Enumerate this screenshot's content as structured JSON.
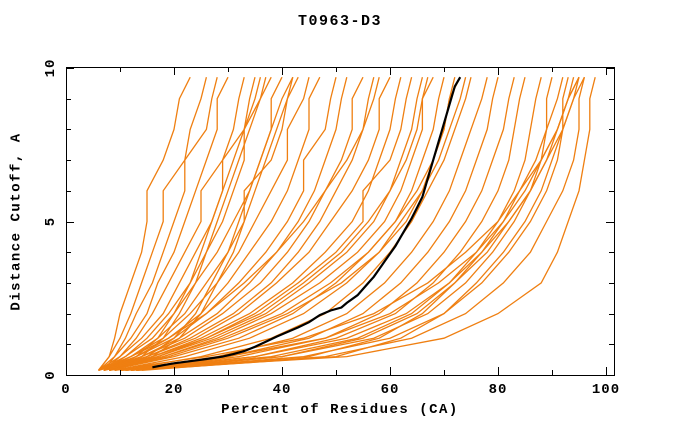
{
  "chart_data": {
    "type": "line",
    "title": "T0963-D3",
    "xlabel": "Percent of Residues (CA)",
    "ylabel": "Distance Cutoff, A",
    "xlim": [
      0,
      100
    ],
    "ylim": [
      0,
      10
    ],
    "grid": false,
    "legend": false,
    "x_ticks": {
      "major": [
        0,
        20,
        40,
        60,
        80,
        100
      ],
      "minor": [
        10,
        30,
        50,
        70,
        90
      ]
    },
    "y_ticks": {
      "major": [
        0,
        5,
        10
      ],
      "minor": [
        1,
        2,
        3,
        4,
        6,
        7,
        8,
        9
      ]
    },
    "colors": {
      "models": "#ef7f11",
      "highlight": "#000000",
      "frame": "#000000"
    },
    "highlight_series": {
      "name": "highlighted-model",
      "color": "#000000",
      "points": [
        [
          16,
          0.25
        ],
        [
          18,
          0.32
        ],
        [
          20,
          0.38
        ],
        [
          23,
          0.45
        ],
        [
          26,
          0.52
        ],
        [
          29,
          0.6
        ],
        [
          31,
          0.68
        ],
        [
          33,
          0.78
        ],
        [
          35,
          0.92
        ],
        [
          37,
          1.08
        ],
        [
          39,
          1.25
        ],
        [
          41,
          1.4
        ],
        [
          43,
          1.55
        ],
        [
          45,
          1.72
        ],
        [
          47,
          1.95
        ],
        [
          49,
          2.1
        ],
        [
          51,
          2.2
        ],
        [
          52,
          2.35
        ],
        [
          54,
          2.6
        ],
        [
          55,
          2.8
        ],
        [
          56,
          3.0
        ],
        [
          57,
          3.2
        ],
        [
          58,
          3.45
        ],
        [
          59,
          3.7
        ],
        [
          60,
          3.95
        ],
        [
          61,
          4.2
        ],
        [
          62,
          4.5
        ],
        [
          63,
          4.8
        ],
        [
          64,
          5.1
        ],
        [
          65,
          5.45
        ],
        [
          66,
          5.8
        ],
        [
          66.5,
          6.1
        ],
        [
          67,
          6.4
        ],
        [
          67.5,
          6.7
        ],
        [
          68,
          7.0
        ],
        [
          68.5,
          7.3
        ],
        [
          69,
          7.6
        ],
        [
          69.5,
          7.9
        ],
        [
          70,
          8.2
        ],
        [
          70.5,
          8.5
        ],
        [
          71,
          8.8
        ],
        [
          71.5,
          9.1
        ],
        [
          72,
          9.4
        ],
        [
          72.5,
          9.55
        ],
        [
          73,
          9.7
        ]
      ]
    },
    "model_series": {
      "name": "server-models",
      "color": "#ef7f11",
      "cutoffs": [
        0.15,
        0.6,
        1.2,
        2,
        3,
        4,
        5,
        6,
        7,
        8,
        9,
        9.7
      ],
      "percents": [
        [
          6,
          8,
          9,
          10,
          12,
          14,
          15,
          15,
          18,
          20,
          21,
          23
        ],
        [
          6,
          8,
          10,
          12,
          14,
          16,
          18,
          18,
          22,
          23,
          25,
          26
        ],
        [
          7,
          9,
          11,
          13,
          16,
          18,
          20,
          22,
          22,
          26,
          27,
          28
        ],
        [
          6,
          9,
          12,
          15,
          17,
          20,
          22,
          24,
          26,
          28,
          28,
          30
        ],
        [
          7,
          10,
          13,
          16,
          19,
          22,
          25,
          25,
          29,
          31,
          32,
          33
        ],
        [
          6,
          10,
          14,
          18,
          21,
          24,
          27,
          29,
          29,
          33,
          34,
          35
        ],
        [
          7,
          11,
          15,
          19,
          23,
          26,
          29,
          31,
          33,
          33,
          36,
          37
        ],
        [
          6,
          11,
          16,
          20,
          24,
          28,
          31,
          34,
          36,
          38,
          38,
          40
        ],
        [
          7,
          12,
          17,
          22,
          26,
          30,
          33,
          33,
          38,
          40,
          41,
          42
        ],
        [
          6,
          12,
          18,
          23,
          28,
          32,
          35,
          38,
          41,
          41,
          44,
          45
        ],
        [
          7,
          13,
          19,
          25,
          30,
          34,
          38,
          41,
          43,
          45,
          45,
          47
        ],
        [
          6,
          13,
          20,
          26,
          32,
          37,
          41,
          44,
          44,
          48,
          49,
          50
        ],
        [
          7,
          14,
          21,
          28,
          34,
          39,
          43,
          46,
          48,
          50,
          51,
          52
        ],
        [
          6,
          14,
          22,
          29,
          36,
          41,
          45,
          48,
          51,
          53,
          53,
          55
        ],
        [
          7,
          15,
          23,
          31,
          38,
          43,
          47,
          50,
          53,
          55,
          56,
          57
        ],
        [
          6,
          15,
          24,
          32,
          39,
          45,
          49,
          53,
          56,
          58,
          58,
          60
        ],
        [
          7,
          16,
          25,
          34,
          42,
          48,
          53,
          56,
          58,
          60,
          61,
          62
        ],
        [
          8,
          17,
          26,
          35,
          43,
          50,
          55,
          55,
          60,
          62,
          63,
          64
        ],
        [
          7,
          17,
          27,
          37,
          45,
          52,
          57,
          60,
          62,
          64,
          65,
          66
        ],
        [
          8,
          18,
          28,
          38,
          47,
          54,
          59,
          62,
          64,
          66,
          66,
          68
        ],
        [
          7,
          18,
          29,
          40,
          49,
          56,
          61,
          64,
          66,
          68,
          69,
          70
        ],
        [
          8,
          19,
          30,
          41,
          51,
          58,
          63,
          66,
          68,
          70,
          71,
          72
        ],
        [
          10,
          25,
          38,
          48,
          55,
          60,
          64,
          67,
          70,
          72,
          74,
          75
        ],
        [
          11,
          28,
          42,
          52,
          59,
          64,
          68,
          71,
          73,
          75,
          77,
          78
        ],
        [
          10,
          30,
          45,
          55,
          62,
          67,
          71,
          74,
          76,
          78,
          79,
          80
        ],
        [
          11,
          32,
          48,
          58,
          65,
          70,
          74,
          77,
          79,
          81,
          82,
          83
        ],
        [
          12,
          35,
          50,
          61,
          68,
          73,
          77,
          80,
          82,
          83,
          84,
          85
        ],
        [
          12,
          38,
          54,
          64,
          71,
          76,
          80,
          83,
          85,
          86,
          87,
          88
        ],
        [
          13,
          40,
          57,
          67,
          74,
          79,
          83,
          86,
          88,
          89,
          89,
          90
        ],
        [
          13,
          44,
          60,
          70,
          77,
          82,
          86,
          89,
          91,
          92,
          92,
          93
        ],
        [
          14,
          48,
          64,
          74,
          81,
          86,
          89,
          92,
          94,
          95,
          95,
          96
        ],
        [
          10,
          52,
          70,
          80,
          88,
          91,
          93,
          95,
          96,
          97,
          97,
          98
        ],
        [
          12,
          45,
          58,
          66,
          72,
          77,
          81,
          84,
          87,
          89,
          91,
          92
        ],
        [
          13,
          50,
          62,
          70,
          76,
          81,
          85,
          88,
          90,
          92,
          94,
          95
        ],
        [
          11,
          40,
          55,
          65,
          72,
          78,
          82,
          86,
          89,
          91,
          93,
          94
        ],
        [
          10,
          35,
          52,
          63,
          71,
          77,
          82,
          86,
          89,
          92,
          94,
          96
        ],
        [
          9,
          30,
          48,
          60,
          69,
          76,
          81,
          85,
          88,
          91,
          93,
          95
        ],
        [
          8,
          26,
          44,
          57,
          67,
          74,
          80,
          84,
          88,
          91,
          93,
          95
        ],
        [
          8,
          14,
          18,
          21,
          24,
          26,
          28,
          30,
          32,
          34,
          36,
          38
        ],
        [
          9,
          16,
          21,
          25,
          28,
          31,
          33,
          35,
          37,
          39,
          41,
          43
        ],
        [
          8,
          13,
          17,
          20,
          23,
          25,
          27,
          29,
          31,
          33,
          35,
          36
        ],
        [
          9,
          15,
          20,
          24,
          27,
          30,
          32,
          34,
          36,
          38,
          40,
          42
        ],
        [
          6,
          12,
          19,
          26,
          33,
          39,
          44,
          48,
          52,
          55,
          57,
          58
        ],
        [
          7,
          16,
          26,
          36,
          44,
          51,
          56,
          60,
          63,
          65,
          66,
          67
        ],
        [
          9,
          22,
          34,
          44,
          52,
          58,
          62,
          66,
          69,
          71,
          73,
          74
        ],
        [
          8,
          20,
          32,
          42,
          50,
          56,
          61,
          65,
          68,
          70,
          71,
          73
        ]
      ]
    }
  }
}
